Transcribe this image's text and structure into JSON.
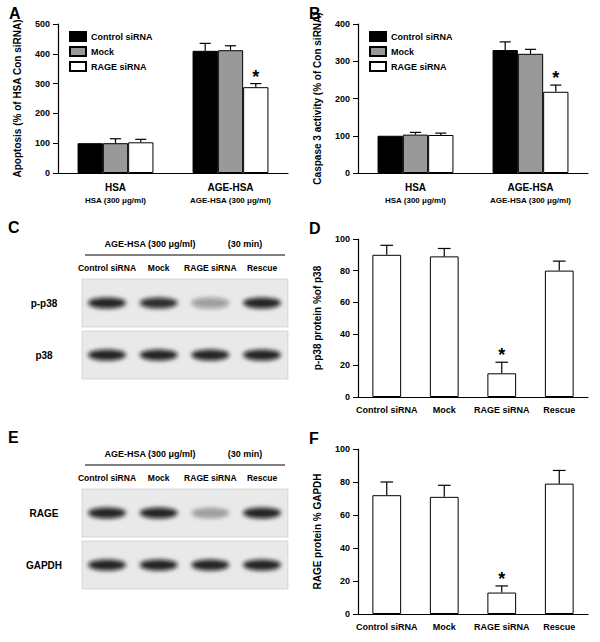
{
  "chart_data": [
    {
      "type": "bar",
      "title": "A",
      "ylabel": "Apoptosis (% of HSA Con siRNA)",
      "categories": [
        "HSA",
        "AGE-HSA"
      ],
      "category_sublabels": [
        "HSA (300 μg/ml)",
        "AGE-HSA (300 μg/ml)"
      ],
      "series": [
        {
          "name": "Control siRNA",
          "color": "#000000",
          "values": [
            100,
            410
          ],
          "errors": [
            0,
            25
          ]
        },
        {
          "name": "Mock",
          "color": "#999999",
          "values": [
            100,
            412
          ],
          "errors": [
            15,
            15
          ]
        },
        {
          "name": "RAGE siRNA",
          "color": "#ffffff",
          "values": [
            103,
            288
          ],
          "errors": [
            10,
            12
          ]
        }
      ],
      "annotations": [
        {
          "text": "*",
          "category": "AGE-HSA",
          "series": "RAGE siRNA"
        }
      ],
      "ylim": [
        0,
        500
      ],
      "yticks": [
        0,
        100,
        200,
        300,
        400,
        500
      ],
      "grid": false,
      "legend": "upper left"
    },
    {
      "type": "bar",
      "title": "B",
      "ylabel": "Caspase 3 activity (% of Con siRNA)",
      "categories": [
        "HSA",
        "AGE-HSA"
      ],
      "category_sublabels": [
        "HSA (300 μg/ml)",
        "AGE-HSA (300 μg/ml)"
      ],
      "series": [
        {
          "name": "Control siRNA",
          "color": "#000000",
          "values": [
            100,
            330
          ],
          "errors": [
            0,
            22
          ]
        },
        {
          "name": "Mock",
          "color": "#999999",
          "values": [
            103,
            320
          ],
          "errors": [
            6,
            12
          ]
        },
        {
          "name": "RAGE siRNA",
          "color": "#ffffff",
          "values": [
            102,
            218
          ],
          "errors": [
            5,
            18
          ]
        }
      ],
      "annotations": [
        {
          "text": "*",
          "category": "AGE-HSA",
          "series": "RAGE siRNA"
        }
      ],
      "ylim": [
        0,
        400
      ],
      "yticks": [
        0,
        100,
        200,
        300,
        400
      ],
      "grid": false,
      "legend": "upper left"
    },
    {
      "type": "blot",
      "title": "C",
      "treatment": "AGE-HSA (300 μg/ml)",
      "time": "(30 min)",
      "lanes": [
        "Control siRNA",
        "Mock",
        "RAGE siRNA",
        "Rescue"
      ],
      "rows": [
        {
          "name": "p-p38",
          "levels": [
            1,
            0.95,
            0.4,
            1
          ]
        },
        {
          "name": "p38",
          "levels": [
            1,
            1,
            1,
            1
          ]
        }
      ]
    },
    {
      "type": "bar",
      "title": "D",
      "ylabel": "p-p38 protein %of p38",
      "categories": [
        "Control siRNA",
        "Mock",
        "RAGE siRNA",
        "Rescue"
      ],
      "values": [
        90,
        89,
        15,
        80
      ],
      "errors": [
        6,
        5,
        7,
        6
      ],
      "color": "#ffffff",
      "annotations": [
        {
          "text": "*",
          "category": "RAGE siRNA"
        }
      ],
      "ylim": [
        0,
        100
      ],
      "yticks": [
        0,
        20,
        40,
        60,
        80,
        100
      ],
      "grid": false
    },
    {
      "type": "blot",
      "title": "E",
      "treatment": "AGE-HSA (300 μg/ml)",
      "time": "(30 min)",
      "lanes": [
        "Control siRNA",
        "Mock",
        "RAGE siRNA",
        "Rescue"
      ],
      "rows": [
        {
          "name": "RAGE",
          "levels": [
            1,
            1,
            0.35,
            1
          ]
        },
        {
          "name": "GAPDH",
          "levels": [
            1,
            1,
            1,
            1
          ]
        }
      ]
    },
    {
      "type": "bar",
      "title": "F",
      "ylabel": "RAGE protein % GAPDH",
      "categories": [
        "Control siRNA",
        "Mock",
        "RAGE siRNA",
        "Rescue"
      ],
      "values": [
        72,
        71,
        13,
        79
      ],
      "errors": [
        8,
        7,
        4,
        8
      ],
      "color": "#ffffff",
      "annotations": [
        {
          "text": "*",
          "category": "RAGE siRNA"
        }
      ],
      "ylim": [
        0,
        100
      ],
      "yticks": [
        0,
        20,
        40,
        60,
        80,
        100
      ],
      "grid": false
    }
  ]
}
